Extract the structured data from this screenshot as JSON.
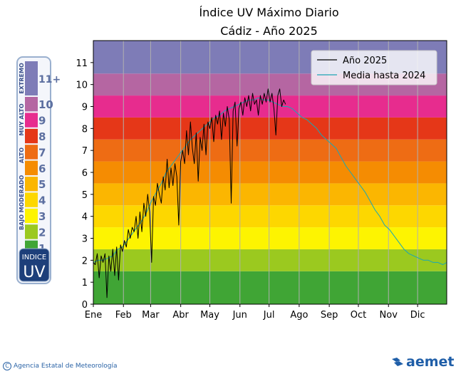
{
  "chart_data": {
    "type": "line",
    "title": "Índice UV Máximo Diario",
    "subtitle": "Cádiz - Año 2025",
    "xlabel": "",
    "ylabel": "",
    "ylim": [
      0,
      12
    ],
    "xlim_days": [
      1,
      365
    ],
    "x_ticks": [
      "Ene",
      "Feb",
      "Mar",
      "Abr",
      "May",
      "Jun",
      "Jul",
      "Ago",
      "Sep",
      "Oct",
      "Nov",
      "Dic"
    ],
    "y_ticks": [
      0,
      1,
      2,
      3,
      4,
      5,
      6,
      7,
      8,
      9,
      10,
      11
    ],
    "grid": "vertical",
    "legend_position": "top-right",
    "bands": [
      {
        "from": 0,
        "to": 1.5,
        "color": "#40a535"
      },
      {
        "from": 1.5,
        "to": 2.5,
        "color": "#9bc91f"
      },
      {
        "from": 2.5,
        "to": 3.5,
        "color": "#fdf401"
      },
      {
        "from": 3.5,
        "to": 4.5,
        "color": "#fdd700"
      },
      {
        "from": 4.5,
        "to": 5.5,
        "color": "#fbb601"
      },
      {
        "from": 5.5,
        "to": 6.5,
        "color": "#f58c02"
      },
      {
        "from": 6.5,
        "to": 7.5,
        "color": "#ee6c14"
      },
      {
        "from": 7.5,
        "to": 8.5,
        "color": "#e53718"
      },
      {
        "from": 8.5,
        "to": 9.5,
        "color": "#e72c8e"
      },
      {
        "from": 9.5,
        "to": 10.5,
        "color": "#b566a2"
      },
      {
        "from": 10.5,
        "to": 12,
        "color": "#7e7cb7"
      }
    ],
    "series": [
      {
        "name": "Año 2025",
        "color": "#000000",
        "points": [
          [
            1,
            1.9
          ],
          [
            3,
            1.8
          ],
          [
            5,
            2.3
          ],
          [
            7,
            1.2
          ],
          [
            9,
            2.2
          ],
          [
            11,
            1.9
          ],
          [
            13,
            2.3
          ],
          [
            15,
            0.3
          ],
          [
            17,
            2.2
          ],
          [
            19,
            1.5
          ],
          [
            21,
            2.5
          ],
          [
            23,
            1.3
          ],
          [
            25,
            2.6
          ],
          [
            27,
            1.1
          ],
          [
            29,
            2.7
          ],
          [
            31,
            2.4
          ],
          [
            33,
            2.9
          ],
          [
            35,
            2.6
          ],
          [
            37,
            3.4
          ],
          [
            39,
            3.0
          ],
          [
            41,
            3.5
          ],
          [
            43,
            3.3
          ],
          [
            45,
            4.0
          ],
          [
            47,
            3.0
          ],
          [
            49,
            4.2
          ],
          [
            51,
            3.3
          ],
          [
            53,
            4.6
          ],
          [
            55,
            4.0
          ],
          [
            57,
            5.0
          ],
          [
            59,
            4.2
          ],
          [
            61,
            1.9
          ],
          [
            63,
            4.9
          ],
          [
            65,
            4.5
          ],
          [
            67,
            5.5
          ],
          [
            69,
            5.0
          ],
          [
            71,
            4.6
          ],
          [
            73,
            5.8
          ],
          [
            75,
            5.2
          ],
          [
            77,
            6.6
          ],
          [
            79,
            5.3
          ],
          [
            81,
            6.2
          ],
          [
            83,
            5.4
          ],
          [
            85,
            6.4
          ],
          [
            87,
            5.8
          ],
          [
            89,
            3.6
          ],
          [
            91,
            6.5
          ],
          [
            93,
            7.0
          ],
          [
            95,
            6.4
          ],
          [
            97,
            7.9
          ],
          [
            99,
            6.8
          ],
          [
            101,
            8.3
          ],
          [
            103,
            7.1
          ],
          [
            105,
            6.4
          ],
          [
            107,
            7.8
          ],
          [
            109,
            5.6
          ],
          [
            111,
            7.6
          ],
          [
            113,
            7.0
          ],
          [
            115,
            8.2
          ],
          [
            117,
            6.8
          ],
          [
            119,
            8.3
          ],
          [
            121,
            8.0
          ],
          [
            123,
            8.5
          ],
          [
            125,
            7.4
          ],
          [
            127,
            8.6
          ],
          [
            129,
            8.2
          ],
          [
            131,
            8.8
          ],
          [
            133,
            7.5
          ],
          [
            135,
            8.7
          ],
          [
            137,
            8.1
          ],
          [
            139,
            9.0
          ],
          [
            141,
            8.4
          ],
          [
            143,
            4.6
          ],
          [
            145,
            8.8
          ],
          [
            147,
            9.2
          ],
          [
            149,
            7.2
          ],
          [
            151,
            8.9
          ],
          [
            153,
            9.2
          ],
          [
            155,
            8.6
          ],
          [
            157,
            9.4
          ],
          [
            159,
            9.0
          ],
          [
            161,
            9.5
          ],
          [
            163,
            8.8
          ],
          [
            165,
            9.6
          ],
          [
            167,
            9.1
          ],
          [
            169,
            9.3
          ],
          [
            171,
            8.6
          ],
          [
            173,
            9.5
          ],
          [
            175,
            9.1
          ],
          [
            177,
            9.6
          ],
          [
            179,
            9.2
          ],
          [
            181,
            9.8
          ],
          [
            183,
            9.2
          ],
          [
            185,
            9.6
          ],
          [
            187,
            8.9
          ],
          [
            189,
            7.7
          ],
          [
            191,
            9.5
          ],
          [
            193,
            9.8
          ],
          [
            195,
            9.0
          ],
          [
            197,
            9.3
          ],
          [
            199,
            9.1
          ]
        ]
      },
      {
        "name": "Media hasta 2024",
        "color": "#1aa7b5",
        "points": [
          [
            1,
            1.9
          ],
          [
            6,
            2.0
          ],
          [
            11,
            2.0
          ],
          [
            16,
            2.1
          ],
          [
            21,
            2.2
          ],
          [
            26,
            2.5
          ],
          [
            31,
            2.6
          ],
          [
            36,
            2.9
          ],
          [
            41,
            3.2
          ],
          [
            46,
            3.5
          ],
          [
            51,
            3.8
          ],
          [
            56,
            4.2
          ],
          [
            61,
            4.7
          ],
          [
            66,
            5.1
          ],
          [
            71,
            5.5
          ],
          [
            76,
            6.0
          ],
          [
            81,
            6.3
          ],
          [
            86,
            6.6
          ],
          [
            91,
            6.9
          ],
          [
            96,
            7.2
          ],
          [
            101,
            7.5
          ],
          [
            106,
            7.7
          ],
          [
            111,
            7.9
          ],
          [
            116,
            8.1
          ],
          [
            121,
            8.3
          ],
          [
            126,
            8.5
          ],
          [
            131,
            8.6
          ],
          [
            136,
            8.8
          ],
          [
            141,
            8.9
          ],
          [
            146,
            9.0
          ],
          [
            151,
            9.1
          ],
          [
            156,
            9.2
          ],
          [
            161,
            9.3
          ],
          [
            166,
            9.3
          ],
          [
            171,
            9.4
          ],
          [
            176,
            9.3
          ],
          [
            181,
            9.3
          ],
          [
            186,
            9.2
          ],
          [
            191,
            9.1
          ],
          [
            196,
            9.0
          ],
          [
            201,
            9.0
          ],
          [
            206,
            8.9
          ],
          [
            211,
            8.7
          ],
          [
            216,
            8.5
          ],
          [
            221,
            8.4
          ],
          [
            226,
            8.2
          ],
          [
            231,
            8.0
          ],
          [
            236,
            7.7
          ],
          [
            241,
            7.5
          ],
          [
            246,
            7.3
          ],
          [
            251,
            7.1
          ],
          [
            256,
            6.7
          ],
          [
            261,
            6.3
          ],
          [
            266,
            6.0
          ],
          [
            271,
            5.7
          ],
          [
            276,
            5.4
          ],
          [
            281,
            5.1
          ],
          [
            286,
            4.7
          ],
          [
            291,
            4.3
          ],
          [
            296,
            4.0
          ],
          [
            301,
            3.6
          ],
          [
            306,
            3.4
          ],
          [
            311,
            3.1
          ],
          [
            316,
            2.8
          ],
          [
            321,
            2.5
          ],
          [
            326,
            2.3
          ],
          [
            331,
            2.2
          ],
          [
            336,
            2.1
          ],
          [
            341,
            2.0
          ],
          [
            346,
            2.0
          ],
          [
            351,
            1.9
          ],
          [
            356,
            1.9
          ],
          [
            361,
            1.8
          ],
          [
            365,
            1.9
          ]
        ]
      }
    ]
  },
  "uv_scale": {
    "badge_top": "INDICE",
    "badge_bottom": "UV",
    "categories": [
      {
        "label": "EXTREMO",
        "color": "#7e7cb7"
      },
      {
        "label": "MUY ALTO",
        "color": "#e53718"
      },
      {
        "label": "ALTO",
        "color": "#f58c02"
      },
      {
        "label": "MODERADO",
        "color": "#fbb601"
      },
      {
        "label": "BAJO",
        "color": "#40a535"
      }
    ],
    "levels": [
      {
        "label": "11+",
        "color": "#7e7cb7"
      },
      {
        "label": "10",
        "color": "#b566a2"
      },
      {
        "label": "9",
        "color": "#e72c8e"
      },
      {
        "label": "8",
        "color": "#e53718"
      },
      {
        "label": "7",
        "color": "#ee6c14"
      },
      {
        "label": "6",
        "color": "#f58c02"
      },
      {
        "label": "5",
        "color": "#fbb601"
      },
      {
        "label": "4",
        "color": "#fdd700"
      },
      {
        "label": "3",
        "color": "#fdf401"
      },
      {
        "label": "2",
        "color": "#9bc91f"
      },
      {
        "label": "1",
        "color": "#40a535"
      }
    ]
  },
  "footer": {
    "agency": "Agencia Estatal de Meteorología",
    "copyright_symbol": "C",
    "logo_text": "aemet"
  }
}
